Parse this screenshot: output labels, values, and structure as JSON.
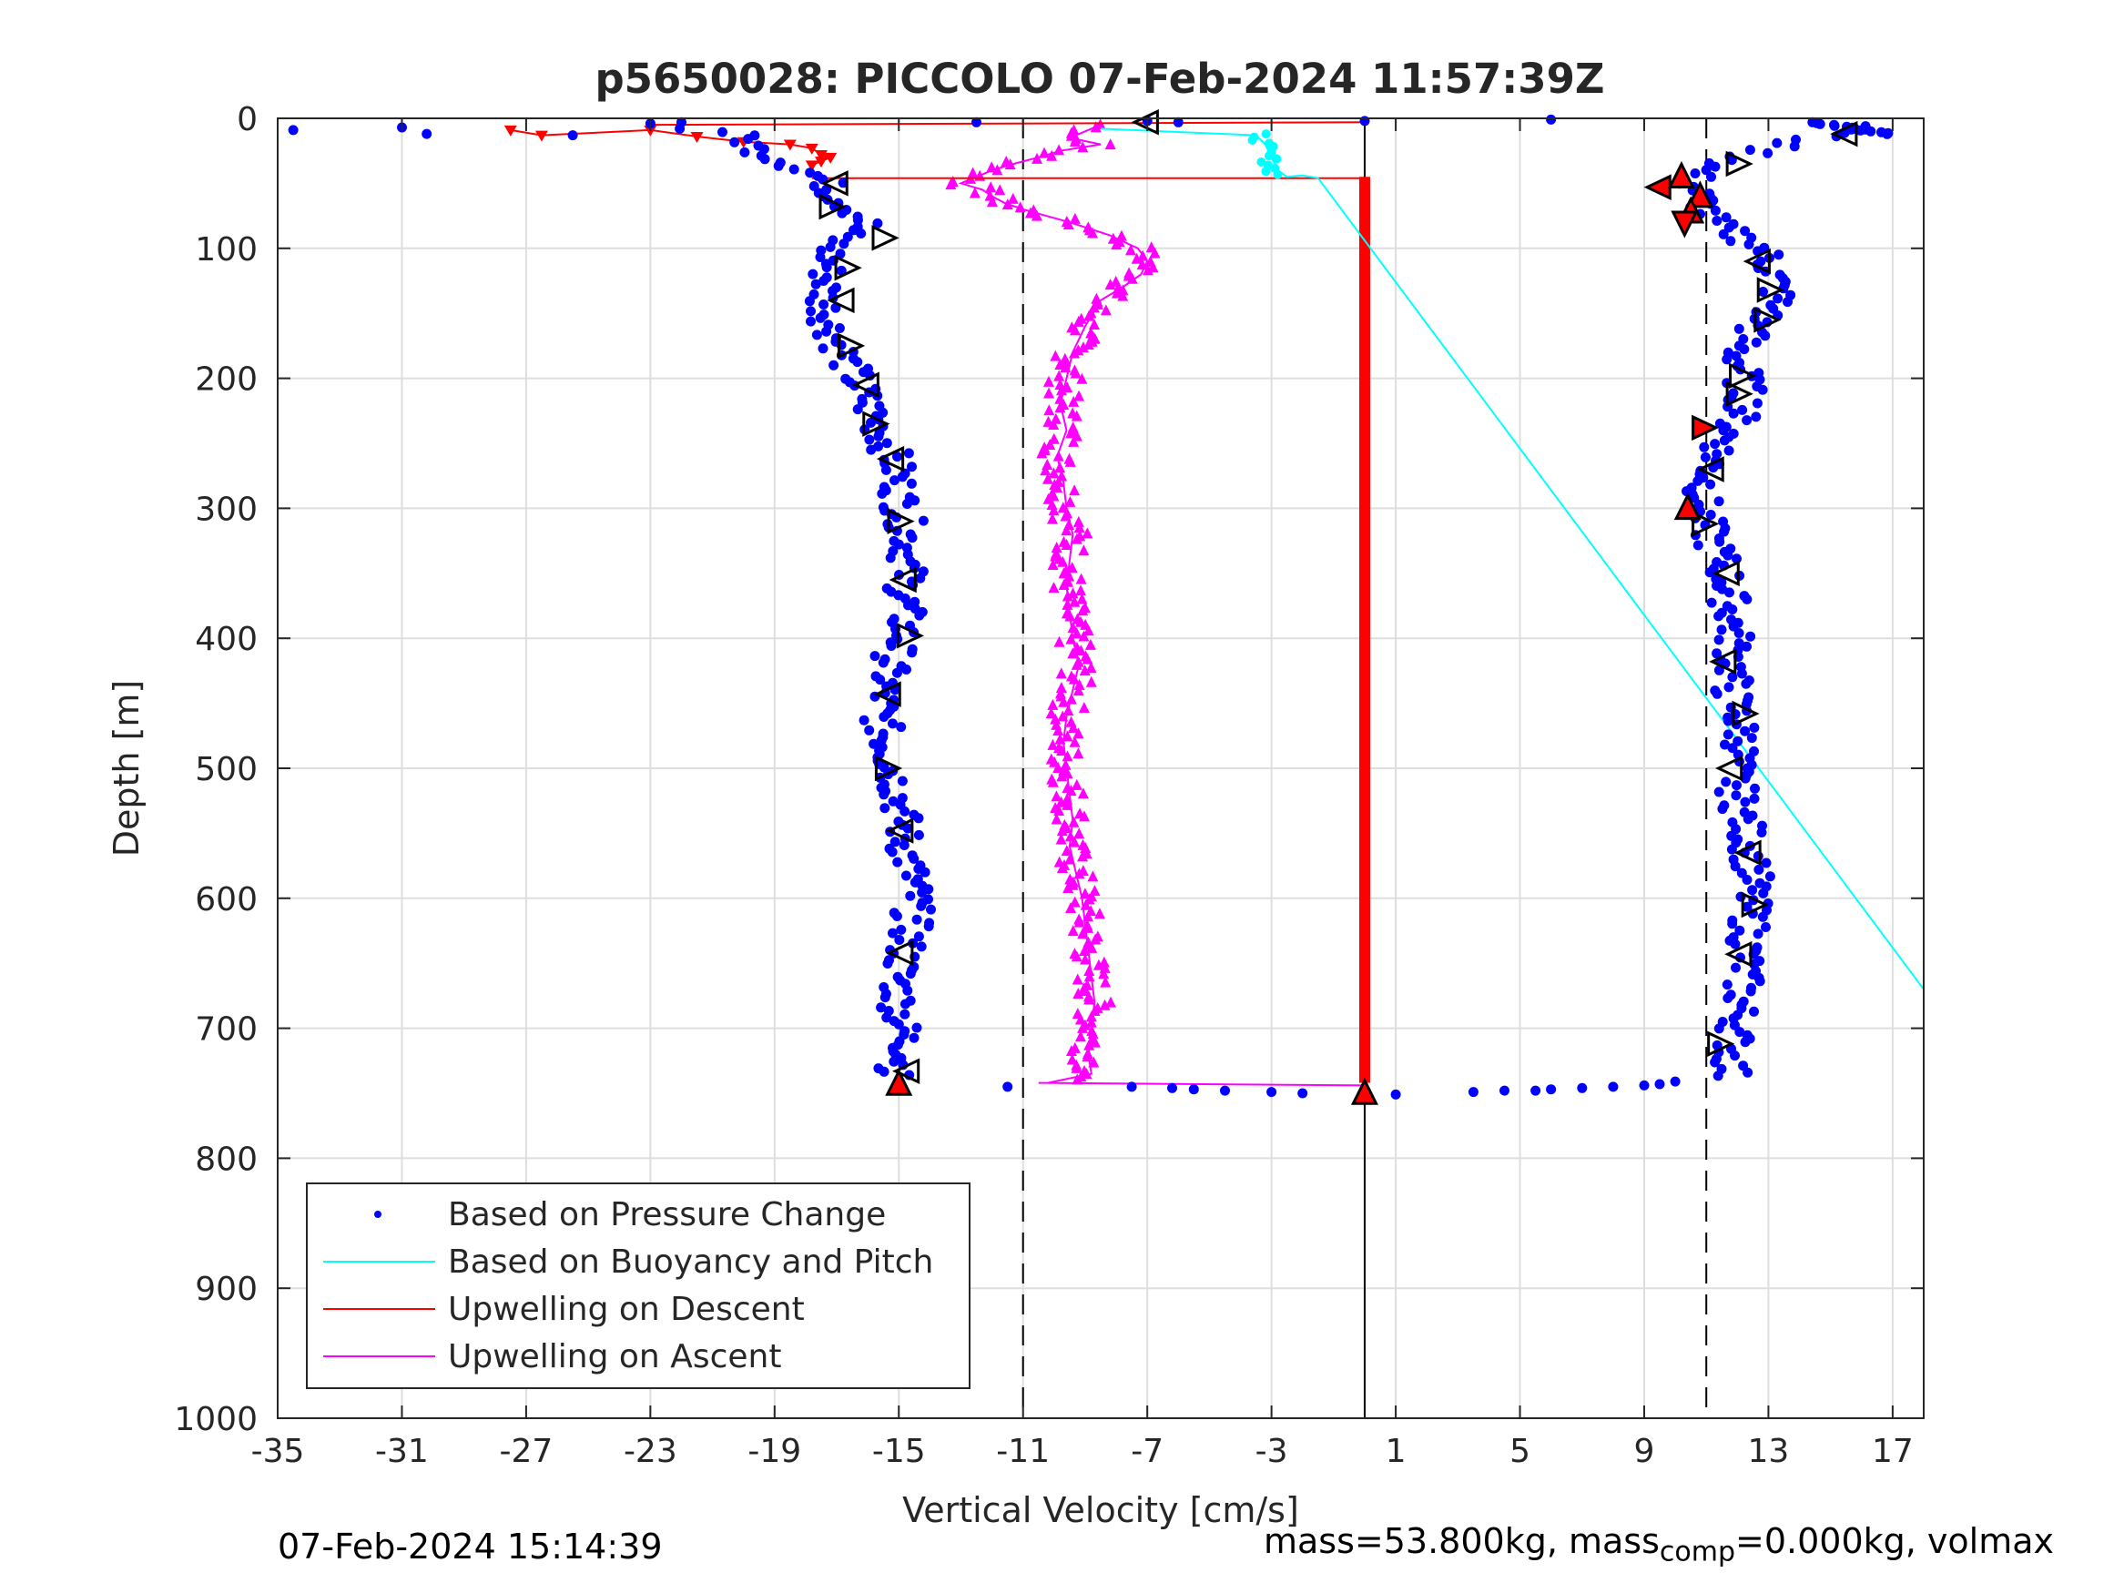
{
  "chart_data": {
    "type": "scatter",
    "title": "p5650028: PICCOLO 07-Feb-2024 11:57:39Z",
    "xlabel": "Vertical Velocity [cm/s]",
    "ylabel": "Depth [m]",
    "xlim": [
      -35,
      18
    ],
    "ylim": [
      1000,
      0
    ],
    "y_reversed": true,
    "grid": true,
    "legend_position": "bottom-left",
    "xticks": [
      -35,
      -31,
      -27,
      -23,
      -19,
      -15,
      -11,
      -7,
      -3,
      1,
      5,
      9,
      13,
      17
    ],
    "yticks": [
      0,
      100,
      200,
      300,
      400,
      500,
      600,
      700,
      800,
      900,
      1000
    ],
    "xtick_labels": [
      "-35",
      "-31",
      "-27",
      "-23",
      "-19",
      "-15",
      "-11",
      "-7",
      "-3",
      "1",
      "5",
      "9",
      "13",
      "17"
    ],
    "ytick_labels": [
      "0",
      "100",
      "200",
      "300",
      "400",
      "500",
      "600",
      "700",
      "800",
      "900",
      "1000"
    ],
    "reference_lines": {
      "solid_x": 0,
      "dashed_x": [
        -11,
        11
      ]
    },
    "legend": [
      {
        "name": "Based on Pressure Change",
        "color": "#0000ff",
        "style": "dot"
      },
      {
        "name": "Based on Buoyancy and Pitch",
        "color": "#00ffff",
        "style": "line"
      },
      {
        "name": "Upwelling on Descent",
        "color": "#ff0000",
        "style": "line"
      },
      {
        "name": "Upwelling on Ascent",
        "color": "#ff00ff",
        "style": "line"
      }
    ],
    "series": [
      {
        "name": "Based on Pressure Change",
        "color": "#0000ff",
        "descent_profile": {
          "depth": [
            5,
            10,
            15,
            20,
            25,
            30,
            35,
            40,
            45,
            50,
            60,
            70,
            80,
            90,
            100,
            120,
            140,
            160,
            180,
            200,
            220,
            240,
            260,
            280,
            300,
            320,
            340,
            360,
            380,
            400,
            420,
            440,
            460,
            480,
            500,
            520,
            540,
            560,
            580,
            600,
            620,
            640,
            660,
            680,
            700,
            720,
            735
          ],
          "velocity": [
            -24,
            -20.5,
            -20.0,
            -19.8,
            -19.5,
            -19.0,
            -18.5,
            -18.0,
            -17.6,
            -17.3,
            -17.0,
            -16.5,
            -16.0,
            -16.8,
            -17.2,
            -17.3,
            -17.4,
            -17.2,
            -16.8,
            -16.4,
            -16.0,
            -15.6,
            -15.2,
            -15.0,
            -14.9,
            -14.7,
            -14.7,
            -14.8,
            -14.8,
            -14.9,
            -15.3,
            -15.5,
            -15.6,
            -15.4,
            -15.2,
            -15.0,
            -14.9,
            -14.8,
            -14.6,
            -14.5,
            -14.6,
            -14.8,
            -15.0,
            -15.0,
            -14.9,
            -14.7,
            -15.2
          ]
        },
        "ascent_profile": {
          "depth": [
            5,
            10,
            15,
            20,
            25,
            30,
            35,
            40,
            50,
            60,
            70,
            80,
            90,
            100,
            120,
            140,
            160,
            180,
            200,
            220,
            240,
            260,
            280,
            300,
            320,
            340,
            360,
            380,
            400,
            420,
            440,
            460,
            480,
            500,
            520,
            540,
            560,
            580,
            600,
            620,
            640,
            660,
            680,
            700,
            720,
            735
          ],
          "velocity": [
            16.5,
            15.5,
            14.5,
            13.5,
            12.8,
            12.2,
            11.5,
            10.8,
            10.5,
            10.8,
            11.0,
            11.2,
            12.0,
            12.8,
            13.2,
            13.3,
            12.6,
            12.0,
            12.2,
            12.3,
            11.8,
            11.3,
            11.0,
            10.8,
            11.1,
            11.5,
            11.7,
            11.8,
            11.9,
            11.9,
            11.8,
            12.0,
            12.2,
            11.9,
            12.0,
            12.2,
            12.4,
            12.5,
            12.4,
            12.4,
            12.3,
            12.2,
            12.1,
            12.0,
            11.8,
            11.8
          ]
        },
        "near_surface_points": {
          "velocity": [
            -34.5,
            -31.0,
            -30.2,
            -25.5,
            -23.0,
            -22.0,
            -12.5,
            -7.0,
            -6.0,
            6.0,
            0.0
          ],
          "depth": [
            9,
            7,
            12,
            13,
            4,
            3,
            3,
            2,
            3,
            1,
            2
          ]
        },
        "bottom_turn_points": {
          "velocity": [
            -11.5,
            -7.5,
            -6.2,
            -5.5,
            -4.5,
            -3.0,
            -2.0,
            0.0,
            1.0,
            3.5,
            4.5,
            5.5,
            6.0,
            7.0,
            8.0,
            9.0,
            9.5,
            10.0
          ],
          "depth": [
            745,
            745,
            746,
            747,
            748,
            749,
            750,
            750,
            751,
            749,
            748,
            748,
            747,
            746,
            745,
            744,
            743,
            741
          ]
        }
      },
      {
        "name": "Based on Buoyancy and Pitch",
        "color": "#00ffff",
        "x": [
          -8.5,
          -3.5,
          -3.2,
          -3.0,
          -2.8,
          -2.5,
          -2.0,
          -1.5,
          18.0
        ],
        "y": [
          8,
          13,
          20,
          30,
          40,
          45,
          44,
          46,
          670
        ]
      },
      {
        "name": "Upwelling on Descent",
        "color": "#ff0000",
        "surface_tail": {
          "velocity": [
            -27.5,
            -26.5,
            -23.0,
            -21.5,
            -20.0,
            -18.5,
            -17.8,
            -17.5,
            -17.2,
            -17.5,
            -17.8
          ],
          "depth": [
            9,
            13,
            9,
            14,
            18,
            20,
            23,
            28,
            30,
            33,
            36
          ]
        },
        "vertical_segment": {
          "velocity": 0,
          "depth_from": 45,
          "depth_to": 742
        }
      },
      {
        "name": "Upwelling on Ascent",
        "color": "#ff00ff",
        "depth": [
          5,
          10,
          15,
          20,
          25,
          30,
          35,
          40,
          45,
          50,
          55,
          60,
          65,
          70,
          80,
          90,
          100,
          110,
          120,
          130,
          140,
          160,
          180,
          200,
          220,
          240,
          260,
          280,
          300,
          320,
          340,
          360,
          380,
          400,
          420,
          440,
          460,
          480,
          500,
          520,
          540,
          560,
          580,
          600,
          620,
          640,
          660,
          680,
          700,
          720,
          735,
          742
        ],
        "velocity": [
          -8.5,
          -9.0,
          -9.5,
          -8.5,
          -9.8,
          -10.5,
          -11.3,
          -12.0,
          -12.5,
          -13.0,
          -12.3,
          -12.0,
          -11.6,
          -11.0,
          -9.5,
          -8.2,
          -7.3,
          -7.0,
          -7.2,
          -7.8,
          -8.5,
          -9.0,
          -9.4,
          -9.6,
          -9.8,
          -9.6,
          -9.9,
          -9.7,
          -9.6,
          -9.4,
          -9.5,
          -9.6,
          -9.5,
          -9.4,
          -9.2,
          -9.4,
          -9.6,
          -9.7,
          -9.6,
          -9.5,
          -9.4,
          -9.5,
          -9.3,
          -9.1,
          -9.0,
          -8.9,
          -8.8,
          -8.7,
          -8.8,
          -8.9,
          -8.8,
          -10.2
        ]
      }
    ],
    "markers": {
      "open_triangles": {
        "color": "#000000",
        "points": [
          {
            "velocity": -7.0,
            "depth": 3,
            "dir": "left"
          },
          {
            "velocity": 15.5,
            "depth": 12,
            "dir": "left"
          },
          {
            "velocity": 12.0,
            "depth": 35,
            "dir": "right"
          },
          {
            "velocity": -17.0,
            "depth": 50,
            "dir": "left"
          },
          {
            "velocity": -17.2,
            "depth": 68,
            "dir": "right"
          },
          {
            "velocity": -15.5,
            "depth": 92,
            "dir": "right"
          },
          {
            "velocity": -16.7,
            "depth": 115,
            "dir": "right"
          },
          {
            "velocity": -16.8,
            "depth": 140,
            "dir": "left"
          },
          {
            "velocity": -16.6,
            "depth": 175,
            "dir": "right"
          },
          {
            "velocity": -16.0,
            "depth": 205,
            "dir": "left"
          },
          {
            "velocity": -15.8,
            "depth": 235,
            "dir": "right"
          },
          {
            "velocity": -15.2,
            "depth": 262,
            "dir": "left"
          },
          {
            "velocity": -15.0,
            "depth": 310,
            "dir": "right"
          },
          {
            "velocity": -14.8,
            "depth": 355,
            "dir": "left"
          },
          {
            "velocity": -14.7,
            "depth": 398,
            "dir": "right"
          },
          {
            "velocity": -15.3,
            "depth": 443,
            "dir": "left"
          },
          {
            "velocity": -15.4,
            "depth": 500,
            "dir": "right"
          },
          {
            "velocity": -14.9,
            "depth": 548,
            "dir": "left"
          },
          {
            "velocity": -14.9,
            "depth": 642,
            "dir": "left"
          },
          {
            "velocity": -14.7,
            "depth": 733,
            "dir": "left"
          },
          {
            "velocity": 12.7,
            "depth": 110,
            "dir": "left"
          },
          {
            "velocity": 13.0,
            "depth": 132,
            "dir": "right"
          },
          {
            "velocity": 12.9,
            "depth": 155,
            "dir": "right"
          },
          {
            "velocity": 12.1,
            "depth": 198,
            "dir": "right"
          },
          {
            "velocity": 12.0,
            "depth": 212,
            "dir": "right"
          },
          {
            "velocity": 11.2,
            "depth": 270,
            "dir": "left"
          },
          {
            "velocity": 10.9,
            "depth": 312,
            "dir": "right"
          },
          {
            "velocity": 11.7,
            "depth": 350,
            "dir": "left"
          },
          {
            "velocity": 11.6,
            "depth": 418,
            "dir": "left"
          },
          {
            "velocity": 12.2,
            "depth": 458,
            "dir": "right"
          },
          {
            "velocity": 11.8,
            "depth": 500,
            "dir": "left"
          },
          {
            "velocity": 12.4,
            "depth": 565,
            "dir": "left"
          },
          {
            "velocity": 12.5,
            "depth": 605,
            "dir": "right"
          },
          {
            "velocity": 12.1,
            "depth": 643,
            "dir": "left"
          },
          {
            "velocity": 11.4,
            "depth": 712,
            "dir": "right"
          }
        ]
      },
      "filled_triangles": {
        "color": "#ff0000",
        "points": [
          {
            "velocity": 9.5,
            "depth": 53,
            "dir": "left"
          },
          {
            "velocity": 10.2,
            "depth": 45,
            "dir": "up"
          },
          {
            "velocity": 10.8,
            "depth": 60,
            "dir": "up"
          },
          {
            "velocity": 10.5,
            "depth": 72,
            "dir": "up"
          },
          {
            "velocity": 10.3,
            "depth": 80,
            "dir": "down"
          },
          {
            "velocity": 10.9,
            "depth": 238,
            "dir": "right"
          },
          {
            "velocity": 10.4,
            "depth": 300,
            "dir": "up"
          },
          {
            "velocity": -15.0,
            "depth": 743,
            "dir": "up"
          },
          {
            "velocity": 0.0,
            "depth": 750,
            "dir": "up"
          }
        ]
      }
    }
  },
  "footer": {
    "timestamp": "07-Feb-2024 15:14:39",
    "mass_prefix": "mass=53.800kg, mass",
    "mass_subscript": "comp",
    "mass_suffix": "=0.000kg, volmax"
  }
}
